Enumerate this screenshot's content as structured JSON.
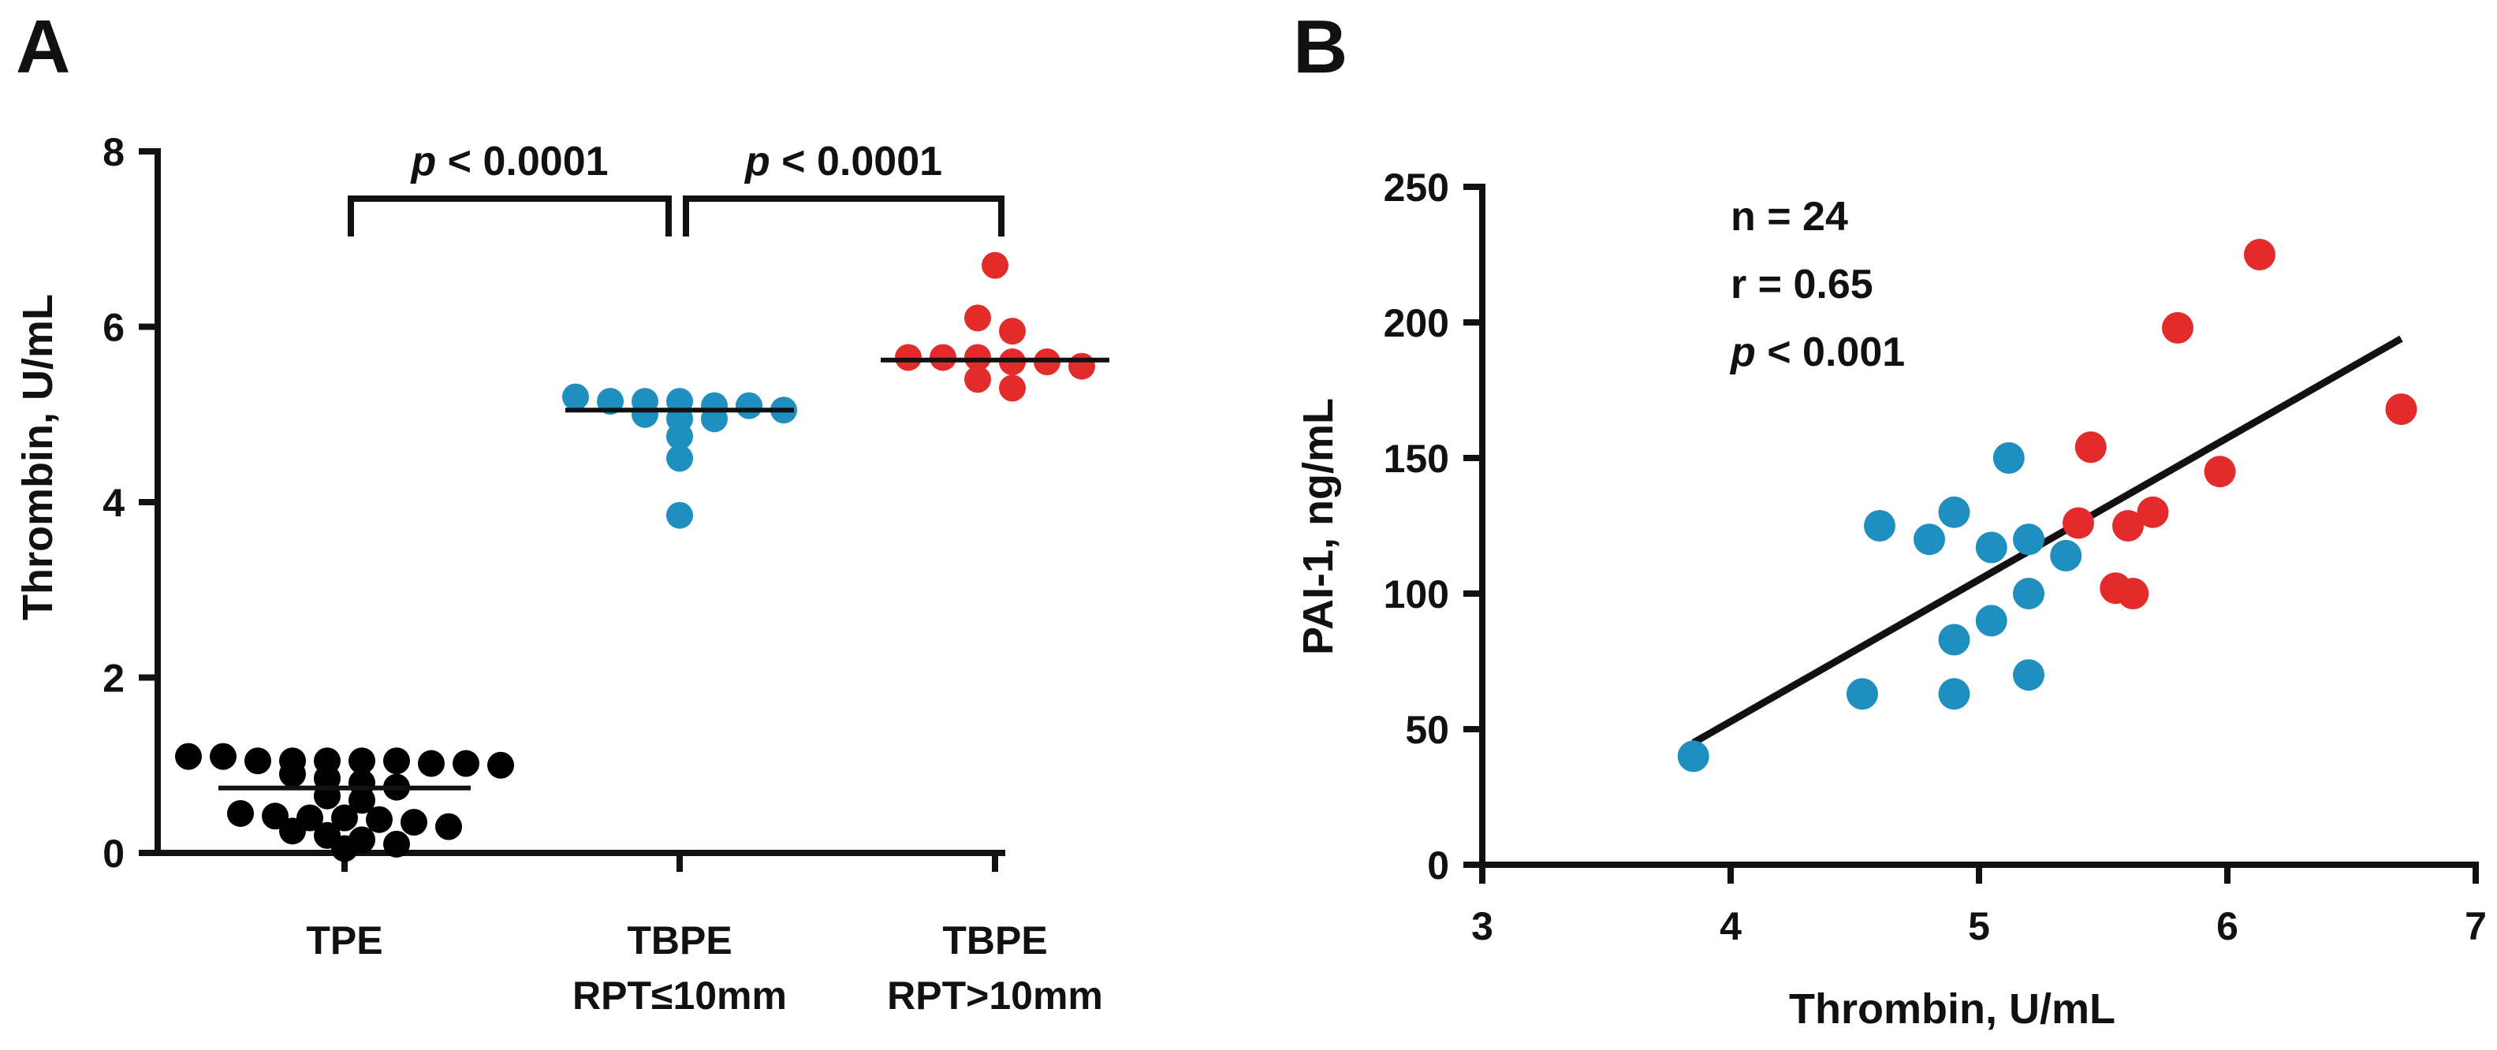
{
  "chart_data": [
    {
      "panel": "A",
      "type": "scatter",
      "subtype": "dot-plot",
      "ylabel": "Thrombin,  U/mL",
      "ylim": [
        0,
        8
      ],
      "yticks": [
        "0",
        "2",
        "4",
        "6",
        "8"
      ],
      "categories": [
        {
          "line1": "TPE",
          "line2": ""
        },
        {
          "line1": "TBPE",
          "line2": "RPT≤10mm"
        },
        {
          "line1": "TBPE",
          "line2": "RPT>10mm"
        }
      ],
      "colors": [
        "#000000",
        "#1f8fbf",
        "#e32b2b"
      ],
      "series": [
        {
          "name": "TPE",
          "median": 0.74,
          "values": [
            1.05,
            1.02,
            1.05,
            1.1,
            1.0,
            1.05,
            1.1,
            1.05,
            1.02,
            1.05,
            0.9,
            0.85,
            0.8,
            0.75,
            0.65,
            0.6,
            0.45,
            0.4,
            0.35,
            0.4,
            0.38,
            0.42,
            0.3,
            0.25,
            0.2,
            0.15,
            0.1,
            0.05
          ]
        },
        {
          "name": "TBPE RPT≤10mm",
          "median": 5.05,
          "values": [
            4.95,
            5.05,
            5.1,
            5.15,
            5.2,
            5.15,
            5.1,
            5.15,
            5.0,
            4.95,
            4.75,
            4.5,
            3.85
          ]
        },
        {
          "name": "TBPE RPT>10mm",
          "median": 5.62,
          "values": [
            5.65,
            5.6,
            5.55,
            5.65,
            5.6,
            5.65,
            6.1,
            5.95,
            6.7,
            5.4,
            5.3
          ]
        }
      ],
      "significance": [
        {
          "from": 0,
          "to": 1,
          "p_italic": "p",
          "text": " < 0.0001"
        },
        {
          "from": 1,
          "to": 2,
          "p_italic": "p",
          "text": " < 0.0001"
        }
      ]
    },
    {
      "panel": "B",
      "type": "scatter",
      "xlabel": "Thrombin, U/mL",
      "ylabel": "PAI-1, ng/mL",
      "xlim": [
        3,
        7
      ],
      "ylim": [
        0,
        250
      ],
      "xticks": [
        "3",
        "4",
        "5",
        "6",
        "7"
      ],
      "yticks": [
        "0",
        "50",
        "100",
        "150",
        "200",
        "250"
      ],
      "annotations": {
        "n": "n = 24",
        "r": "r = 0.65",
        "p_italic": "p",
        "p_rest": " < 0.001"
      },
      "regression": {
        "x": [
          3.85,
          6.7
        ],
        "y": [
          45,
          194
        ]
      },
      "series": [
        {
          "name": "TBPE RPT≤10mm",
          "color": "#1f8fbf",
          "points": [
            [
              3.85,
              40
            ],
            [
              4.53,
              63
            ],
            [
              4.6,
              125
            ],
            [
              4.8,
              120
            ],
            [
              4.9,
              130
            ],
            [
              4.9,
              83
            ],
            [
              4.9,
              63
            ],
            [
              5.05,
              117
            ],
            [
              5.05,
              90
            ],
            [
              5.12,
              150
            ],
            [
              5.2,
              120
            ],
            [
              5.2,
              100
            ],
            [
              5.2,
              70
            ],
            [
              5.35,
              114
            ]
          ]
        },
        {
          "name": "TBPE RPT>10mm",
          "color": "#e32b2b",
          "points": [
            [
              5.4,
              126
            ],
            [
              5.45,
              154
            ],
            [
              5.55,
              102
            ],
            [
              5.6,
              125
            ],
            [
              5.62,
              100
            ],
            [
              5.7,
              130
            ],
            [
              5.8,
              198
            ],
            [
              5.97,
              145
            ],
            [
              6.13,
              225
            ],
            [
              6.7,
              168
            ]
          ]
        }
      ]
    }
  ]
}
